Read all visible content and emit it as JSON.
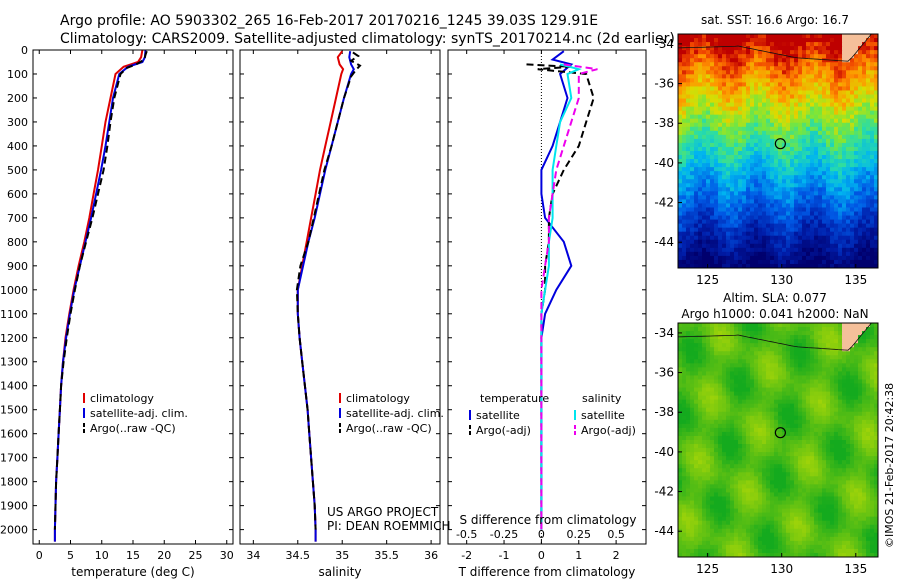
{
  "header": {
    "line1": "Argo profile: AO 5903302_265 16-Feb-2017 20170216_1245 39.03S 129.91E",
    "line2": "Climatology: CARS2009. Satellite-adjusted climatology: synTS_20170214.nc (2d earlier)"
  },
  "footer_vertical": "©IMOS 21-Feb-2017 20:42:38",
  "project_note": [
    "US ARGO PROJECT",
    "PI: DEAN ROEMMICH"
  ],
  "colors": {
    "climatology": "#e00000",
    "satellite": "#0000dd",
    "argo": "#000000",
    "salinity_sat": "#00e5ee",
    "salinity_argo": "#ee00ee"
  },
  "chart_data": [
    {
      "type": "line",
      "xlabel": "temperature (deg C)",
      "xlim": [
        -1,
        31
      ],
      "xticks": [
        0,
        5,
        10,
        15,
        20,
        25,
        30
      ],
      "ylim": [
        2060,
        0
      ],
      "yticks": [
        0,
        100,
        200,
        300,
        400,
        500,
        600,
        700,
        800,
        900,
        1000,
        1100,
        1200,
        1300,
        1400,
        1500,
        1600,
        1700,
        1800,
        1900,
        2000
      ],
      "legend": [
        "climatology",
        "satellite-adj. clim.",
        "Argo(..raw -QC)"
      ],
      "series": [
        {
          "name": "climatology",
          "color": "#e00000",
          "style": "solid",
          "points": [
            [
              16.5,
              0
            ],
            [
              16.3,
              30
            ],
            [
              15.8,
              50
            ],
            [
              13.5,
              70
            ],
            [
              12.2,
              100
            ],
            [
              11.4,
              200
            ],
            [
              10.6,
              300
            ],
            [
              10.0,
              400
            ],
            [
              9.4,
              500
            ],
            [
              8.7,
              600
            ],
            [
              8.0,
              700
            ],
            [
              7.2,
              800
            ],
            [
              6.3,
              900
            ],
            [
              5.5,
              1000
            ],
            [
              4.8,
              1100
            ],
            [
              4.2,
              1200
            ],
            [
              3.8,
              1300
            ],
            [
              3.5,
              1400
            ],
            [
              3.3,
              1500
            ],
            [
              3.1,
              1600
            ],
            [
              2.9,
              1700
            ],
            [
              2.7,
              1800
            ],
            [
              2.6,
              1900
            ],
            [
              2.5,
              2000
            ],
            [
              2.5,
              2050
            ]
          ]
        },
        {
          "name": "satellite-adj. clim.",
          "color": "#0000dd",
          "style": "solid",
          "points": [
            [
              17.0,
              0
            ],
            [
              16.9,
              30
            ],
            [
              16.5,
              50
            ],
            [
              14.2,
              70
            ],
            [
              12.8,
              100
            ],
            [
              11.8,
              200
            ],
            [
              11.2,
              300
            ],
            [
              10.6,
              400
            ],
            [
              9.9,
              500
            ],
            [
              9.1,
              600
            ],
            [
              8.3,
              700
            ],
            [
              7.4,
              800
            ],
            [
              6.5,
              900
            ],
            [
              5.6,
              1000
            ],
            [
              4.9,
              1100
            ],
            [
              4.3,
              1200
            ],
            [
              3.8,
              1300
            ],
            [
              3.5,
              1400
            ],
            [
              3.3,
              1500
            ],
            [
              3.1,
              1600
            ],
            [
              2.9,
              1700
            ],
            [
              2.7,
              1800
            ],
            [
              2.6,
              1900
            ],
            [
              2.5,
              2000
            ],
            [
              2.5,
              2050
            ]
          ]
        },
        {
          "name": "Argo(..raw -QC)",
          "color": "#000000",
          "style": "dashed",
          "points": [
            [
              17.2,
              5
            ],
            [
              17.0,
              20
            ],
            [
              16.8,
              40
            ],
            [
              15.5,
              60
            ],
            [
              14.0,
              75
            ],
            [
              13.0,
              100
            ],
            [
              12.0,
              200
            ],
            [
              11.4,
              300
            ],
            [
              10.9,
              400
            ],
            [
              10.3,
              500
            ],
            [
              9.4,
              600
            ],
            [
              8.5,
              700
            ],
            [
              7.5,
              800
            ],
            [
              6.5,
              900
            ],
            [
              5.7,
              1000
            ],
            [
              5.0,
              1100
            ],
            [
              4.4,
              1200
            ],
            [
              3.9,
              1300
            ],
            [
              3.5,
              1400
            ],
            [
              3.3,
              1500
            ],
            [
              3.1,
              1600
            ],
            [
              2.9,
              1700
            ],
            [
              2.7,
              1800
            ],
            [
              2.6,
              1900
            ],
            [
              2.5,
              2000
            ]
          ]
        }
      ]
    },
    {
      "type": "line",
      "xlabel": "salinity",
      "xlim": [
        33.85,
        36.1
      ],
      "xticks": [
        34,
        34.5,
        35,
        35.5,
        36
      ],
      "ylim": [
        2060,
        0
      ],
      "legend": [
        "climatology",
        "satellite-adj. clim.",
        "Argo(..raw -QC)"
      ],
      "series": [
        {
          "name": "climatology",
          "color": "#e00000",
          "style": "solid",
          "points": [
            [
              35.0,
              5
            ],
            [
              34.95,
              30
            ],
            [
              34.97,
              60
            ],
            [
              35.01,
              80
            ],
            [
              34.99,
              100
            ],
            [
              34.93,
              200
            ],
            [
              34.87,
              300
            ],
            [
              34.81,
              400
            ],
            [
              34.75,
              500
            ],
            [
              34.7,
              600
            ],
            [
              34.65,
              700
            ],
            [
              34.6,
              800
            ],
            [
              34.55,
              900
            ],
            [
              34.5,
              1000
            ],
            [
              34.5,
              1100
            ],
            [
              34.52,
              1200
            ],
            [
              34.55,
              1300
            ],
            [
              34.58,
              1400
            ],
            [
              34.61,
              1500
            ],
            [
              34.63,
              1600
            ],
            [
              34.65,
              1700
            ],
            [
              34.67,
              1800
            ],
            [
              34.69,
              1900
            ],
            [
              34.7,
              2000
            ],
            [
              34.7,
              2050
            ]
          ]
        },
        {
          "name": "satellite-adj. clim.",
          "color": "#0000dd",
          "style": "solid",
          "points": [
            [
              35.09,
              5
            ],
            [
              35.08,
              30
            ],
            [
              35.1,
              60
            ],
            [
              35.13,
              80
            ],
            [
              35.1,
              100
            ],
            [
              35.02,
              200
            ],
            [
              34.95,
              300
            ],
            [
              34.88,
              400
            ],
            [
              34.81,
              500
            ],
            [
              34.75,
              600
            ],
            [
              34.69,
              700
            ],
            [
              34.62,
              800
            ],
            [
              34.56,
              900
            ],
            [
              34.5,
              1000
            ],
            [
              34.5,
              1100
            ],
            [
              34.52,
              1200
            ],
            [
              34.55,
              1300
            ],
            [
              34.58,
              1400
            ],
            [
              34.61,
              1500
            ],
            [
              34.63,
              1600
            ],
            [
              34.65,
              1700
            ],
            [
              34.67,
              1800
            ],
            [
              34.69,
              1900
            ],
            [
              34.7,
              2000
            ],
            [
              34.7,
              2050
            ]
          ]
        },
        {
          "name": "Argo(..raw -QC)",
          "color": "#000000",
          "style": "dashed",
          "points": [
            [
              35.12,
              10
            ],
            [
              35.18,
              25
            ],
            [
              35.1,
              45
            ],
            [
              35.2,
              65
            ],
            [
              35.15,
              85
            ],
            [
              35.1,
              110
            ],
            [
              35.02,
              200
            ],
            [
              34.95,
              300
            ],
            [
              34.88,
              400
            ],
            [
              34.8,
              500
            ],
            [
              34.74,
              600
            ],
            [
              34.68,
              700
            ],
            [
              34.62,
              800
            ],
            [
              34.53,
              900
            ],
            [
              34.49,
              1000
            ],
            [
              34.5,
              1100
            ],
            [
              34.52,
              1200
            ],
            [
              34.55,
              1300
            ],
            [
              34.58,
              1400
            ],
            [
              34.61,
              1500
            ],
            [
              34.63,
              1600
            ],
            [
              34.65,
              1700
            ],
            [
              34.67,
              1800
            ],
            [
              34.69,
              1900
            ],
            [
              34.7,
              2000
            ]
          ]
        }
      ]
    },
    {
      "type": "line",
      "xlabel": "T difference from climatology",
      "top_xlabel": "S difference from climatology",
      "xlim": [
        -2.5,
        2.8
      ],
      "xticks": [
        -2,
        -1,
        0,
        1,
        2
      ],
      "top_ticks": [
        {
          "label": "-0.5",
          "at": -2
        },
        {
          "label": "-0.25",
          "at": -1
        },
        {
          "label": "0",
          "at": 0
        },
        {
          "label": "0.25",
          "at": 1
        },
        {
          "label": "0.5",
          "at": 2
        }
      ],
      "ylim": [
        2060,
        0
      ],
      "zero_line": 0,
      "legend_left": {
        "title": "temperature",
        "items": [
          "satellite",
          "Argo(-adj)"
        ]
      },
      "legend_right": {
        "title": "salinity",
        "items": [
          "satellite",
          "Argo(-adj)"
        ]
      },
      "series": [
        {
          "name": "satellite",
          "group": "temperature",
          "color": "#0000dd",
          "style": "solid",
          "points": [
            [
              0.6,
              5
            ],
            [
              0.3,
              40
            ],
            [
              0.8,
              60
            ],
            [
              0.5,
              100
            ],
            [
              0.7,
              200
            ],
            [
              0.5,
              300
            ],
            [
              0.3,
              400
            ],
            [
              0.0,
              500
            ],
            [
              0.0,
              600
            ],
            [
              0.1,
              700
            ],
            [
              0.6,
              800
            ],
            [
              0.8,
              900
            ],
            [
              0.4,
              1000
            ],
            [
              0.1,
              1100
            ],
            [
              0.0,
              1200
            ],
            [
              0.0,
              1500
            ],
            [
              0.0,
              2000
            ]
          ]
        },
        {
          "name": "Argo(-adj)",
          "group": "temperature",
          "color": "#000000",
          "style": "dashed",
          "points": [
            [
              -0.4,
              60
            ],
            [
              0.8,
              70
            ],
            [
              -0.1,
              80
            ],
            [
              1.2,
              100
            ],
            [
              1.4,
              200
            ],
            [
              1.2,
              300
            ],
            [
              1.0,
              400
            ],
            [
              0.6,
              500
            ],
            [
              0.3,
              600
            ],
            [
              0.2,
              700
            ],
            [
              0.2,
              800
            ],
            [
              0.1,
              900
            ],
            [
              0.1,
              1000
            ],
            [
              0.0,
              1100
            ],
            [
              0.0,
              2000
            ]
          ]
        },
        {
          "name": "satellite",
          "group": "salinity",
          "color": "#00e5ee",
          "style": "solid",
          "points": [
            [
              0.5,
              60
            ],
            [
              1.0,
              80
            ],
            [
              0.7,
              100
            ],
            [
              0.8,
              200
            ],
            [
              0.5,
              300
            ],
            [
              0.4,
              400
            ],
            [
              0.3,
              500
            ],
            [
              0.3,
              600
            ],
            [
              0.3,
              700
            ],
            [
              0.2,
              800
            ],
            [
              0.2,
              900
            ],
            [
              0.1,
              1000
            ],
            [
              0.0,
              1100
            ],
            [
              0.0,
              1500
            ],
            [
              0.0,
              2000
            ]
          ]
        },
        {
          "name": "Argo(-adj)",
          "group": "salinity",
          "color": "#ee00ee",
          "style": "dashed",
          "points": [
            [
              0.6,
              60
            ],
            [
              1.5,
              80
            ],
            [
              1.0,
              100
            ],
            [
              1.0,
              200
            ],
            [
              0.8,
              300
            ],
            [
              0.6,
              400
            ],
            [
              0.4,
              500
            ],
            [
              0.3,
              600
            ],
            [
              0.2,
              700
            ],
            [
              0.2,
              800
            ],
            [
              0.1,
              900
            ],
            [
              0.0,
              1000
            ],
            [
              0.0,
              2000
            ]
          ]
        }
      ]
    },
    {
      "type": "heatmap",
      "title": "sat. SST: 16.6  Argo: 16.7",
      "xlim": [
        123,
        136.5
      ],
      "ylim": [
        -45.3,
        -33.5
      ],
      "xticks": [
        125,
        130,
        135
      ],
      "yticks": [
        -34,
        -36,
        -38,
        -40,
        -42,
        -44
      ],
      "marker": {
        "lon": 129.91,
        "lat": -39.03
      }
    },
    {
      "type": "heatmap",
      "title_line1": "Altim. SLA: 0.077",
      "title_line2": "Argo h1000: 0.041 h2000: NaN",
      "xlim": [
        123,
        136.5
      ],
      "ylim": [
        -45.3,
        -33.5
      ],
      "xticks": [
        125,
        130,
        135
      ],
      "yticks": [
        -34,
        -36,
        -38,
        -40,
        -42,
        -44
      ],
      "marker": {
        "lon": 129.91,
        "lat": -39.03
      }
    }
  ]
}
